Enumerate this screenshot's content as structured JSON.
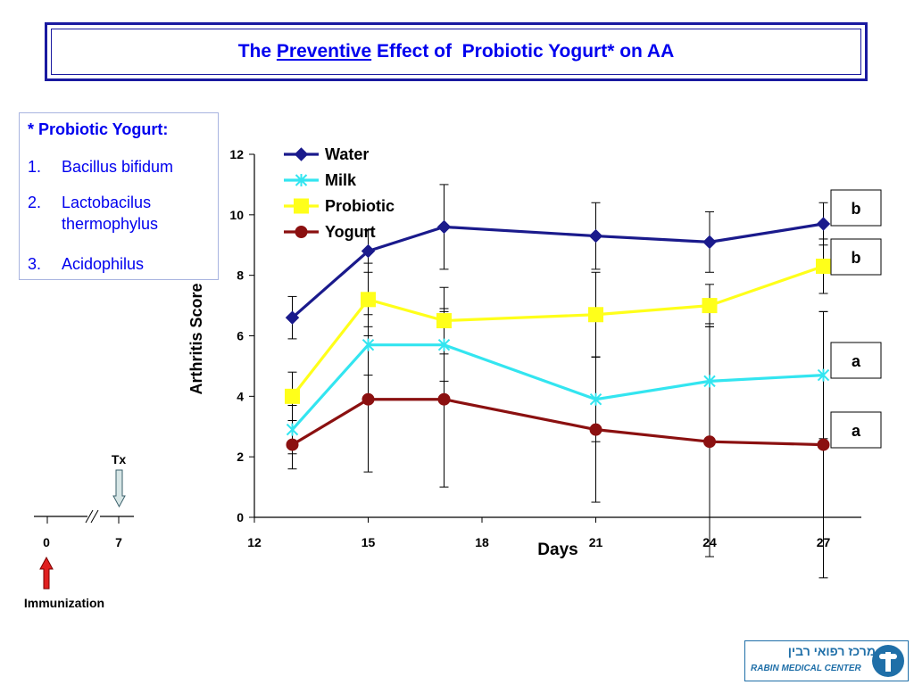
{
  "title": {
    "before": "The ",
    "emphasis": "Preventive",
    "after": " Effect of  Probiotic Yogurt* on AA"
  },
  "note": {
    "heading": "* Probiotic Yogurt:",
    "items": [
      {
        "num": "1.",
        "text": "Bacillus bifidum"
      },
      {
        "num": "2.",
        "text": "Lactobacilus thermophylus"
      },
      {
        "num": "3.",
        "text": "Acidophilus"
      }
    ]
  },
  "timeline": {
    "ticks": [
      "0",
      "7"
    ],
    "tx_label": "Tx",
    "immunization_label": "Immunization"
  },
  "logo": {
    "hebrew": "מרכז רפואי רבין",
    "english": "RABIN MEDICAL CENTER"
  },
  "colors": {
    "title": "#0000ee",
    "water": "#1a1a8c",
    "milk": "#33e5f0",
    "probiotic": "#ffff1a",
    "yogurt": "#8b1010"
  },
  "chart_data": {
    "type": "line",
    "title": "",
    "xlabel": "Days",
    "ylabel": "Arthritis Score",
    "xlim": [
      12,
      28
    ],
    "ylim": [
      0,
      12
    ],
    "xticks": [
      12,
      15,
      18,
      21,
      24,
      27
    ],
    "yticks": [
      0,
      2,
      4,
      6,
      8,
      10,
      12
    ],
    "legend_position": "top-left",
    "x": [
      13,
      15,
      17,
      21,
      24,
      27
    ],
    "series": [
      {
        "name": "Water",
        "marker": "diamond",
        "values": [
          6.6,
          8.8,
          9.6,
          9.3,
          9.1,
          9.7
        ],
        "error_upper": [
          0.7,
          0.7,
          1.4,
          1.1,
          1.0,
          0.7
        ],
        "error_lower": [
          0.7,
          0.7,
          1.4,
          1.1,
          1.0,
          0.7
        ],
        "group": "b"
      },
      {
        "name": "Milk",
        "marker": "asterisk",
        "values": [
          2.9,
          5.7,
          5.7,
          3.9,
          4.5,
          4.7
        ],
        "error_upper": [
          0.8,
          1.0,
          1.2,
          1.4,
          1.9,
          2.1
        ],
        "error_lower": [
          0.8,
          1.0,
          1.2,
          1.4,
          1.9,
          2.1
        ],
        "group": "a"
      },
      {
        "name": "Probiotic",
        "marker": "square",
        "values": [
          4.0,
          7.2,
          6.5,
          6.7,
          7.0,
          8.3
        ],
        "error_upper": [
          0.8,
          1.2,
          1.1,
          1.4,
          0.7,
          0.9
        ],
        "error_lower": [
          0.8,
          1.2,
          1.1,
          1.4,
          0.7,
          0.9
        ],
        "group": "b"
      },
      {
        "name": "Yogurt",
        "marker": "circle",
        "values": [
          2.4,
          3.9,
          3.9,
          2.9,
          2.5,
          2.4
        ],
        "error_upper": [
          0.8,
          2.4,
          2.9,
          2.4,
          3.8,
          4.4
        ],
        "error_lower": [
          0.8,
          2.4,
          2.9,
          2.4,
          3.8,
          4.4
        ],
        "group": "a"
      }
    ],
    "group_labels": [
      "b",
      "b",
      "a",
      "a"
    ]
  }
}
